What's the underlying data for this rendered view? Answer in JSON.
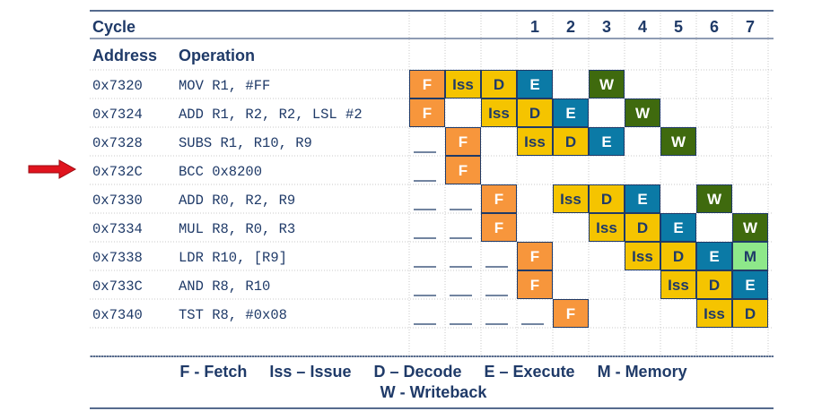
{
  "header": {
    "cycle_label": "Cycle",
    "address_label": "Address",
    "operation_label": "Operation",
    "cycles": [
      "1",
      "2",
      "3",
      "4",
      "5",
      "6",
      "7"
    ]
  },
  "instructions": [
    {
      "address": "0x7320",
      "operation": "MOV R1, #FF"
    },
    {
      "address": "0x7324",
      "operation": "ADD R1, R2, R2, LSL #2"
    },
    {
      "address": "0x7328",
      "operation": "SUBS R1, R10, R9"
    },
    {
      "address": "0x732C",
      "operation": "BCC 0x8200",
      "marked": true
    },
    {
      "address": "0x7330",
      "operation": "ADD R0, R2, R9"
    },
    {
      "address": "0x7334",
      "operation": "MUL R8, R0, R3"
    },
    {
      "address": "0x7338",
      "operation": "LDR R10, [R9]"
    },
    {
      "address": "0x733C",
      "operation": "AND R8, R10"
    },
    {
      "address": "0x7340",
      "operation": "TST R8, #0x08"
    }
  ],
  "stage_colors": {
    "F": "#f7963c",
    "Iss": "#f5c400",
    "D": "#f5c400",
    "E": "#0b7aa6",
    "M": "#8ee88a",
    "W": "#3f6a0e"
  },
  "pipeline": [
    {
      "row": 0,
      "col": 0,
      "stage": "F"
    },
    {
      "row": 0,
      "col": 1,
      "stage": "Iss"
    },
    {
      "row": 0,
      "col": 2,
      "stage": "D"
    },
    {
      "row": 0,
      "col": 3,
      "stage": "E"
    },
    {
      "row": 0,
      "col": 5,
      "stage": "W"
    },
    {
      "row": 1,
      "col": 0,
      "stage": "F"
    },
    {
      "row": 1,
      "col": 2,
      "stage": "Iss"
    },
    {
      "row": 1,
      "col": 3,
      "stage": "D"
    },
    {
      "row": 1,
      "col": 4,
      "stage": "E"
    },
    {
      "row": 1,
      "col": 6,
      "stage": "W"
    },
    {
      "row": 2,
      "col": 1,
      "stage": "F"
    },
    {
      "row": 2,
      "col": 3,
      "stage": "Iss"
    },
    {
      "row": 2,
      "col": 4,
      "stage": "D"
    },
    {
      "row": 2,
      "col": 5,
      "stage": "E"
    },
    {
      "row": 2,
      "col": 7,
      "stage": "W"
    },
    {
      "row": 3,
      "col": 1,
      "stage": "F"
    },
    {
      "row": 4,
      "col": 2,
      "stage": "F"
    },
    {
      "row": 4,
      "col": 4,
      "stage": "Iss"
    },
    {
      "row": 4,
      "col": 5,
      "stage": "D"
    },
    {
      "row": 4,
      "col": 6,
      "stage": "E"
    },
    {
      "row": 4,
      "col": 8,
      "stage": "W"
    },
    {
      "row": 5,
      "col": 2,
      "stage": "F"
    },
    {
      "row": 5,
      "col": 5,
      "stage": "Iss"
    },
    {
      "row": 5,
      "col": 6,
      "stage": "D"
    },
    {
      "row": 5,
      "col": 7,
      "stage": "E"
    },
    {
      "row": 5,
      "col": 9,
      "stage": "W"
    },
    {
      "row": 6,
      "col": 3,
      "stage": "F"
    },
    {
      "row": 6,
      "col": 6,
      "stage": "Iss"
    },
    {
      "row": 6,
      "col": 7,
      "stage": "D"
    },
    {
      "row": 6,
      "col": 8,
      "stage": "E"
    },
    {
      "row": 6,
      "col": 9,
      "stage": "M"
    },
    {
      "row": 7,
      "col": 3,
      "stage": "F"
    },
    {
      "row": 7,
      "col": 7,
      "stage": "Iss"
    },
    {
      "row": 7,
      "col": 8,
      "stage": "D"
    },
    {
      "row": 7,
      "col": 9,
      "stage": "E"
    },
    {
      "row": 8,
      "col": 4,
      "stage": "F"
    },
    {
      "row": 8,
      "col": 8,
      "stage": "Iss"
    },
    {
      "row": 8,
      "col": 9,
      "stage": "D"
    }
  ],
  "wait_marks": [
    {
      "row": 2,
      "cols": [
        0
      ]
    },
    {
      "row": 3,
      "cols": [
        0
      ]
    },
    {
      "row": 4,
      "cols": [
        0,
        1
      ]
    },
    {
      "row": 5,
      "cols": [
        0,
        1
      ]
    },
    {
      "row": 6,
      "cols": [
        0,
        1,
        2
      ]
    },
    {
      "row": 7,
      "cols": [
        0,
        1,
        2
      ]
    },
    {
      "row": 8,
      "cols": [
        0,
        1,
        2,
        3
      ]
    }
  ],
  "legend": {
    "line1": "F - Fetch     Iss – Issue     D – Decode     E – Execute     M - Memory",
    "line2": "W - Writeback"
  },
  "arrow_color": "#e0141e"
}
